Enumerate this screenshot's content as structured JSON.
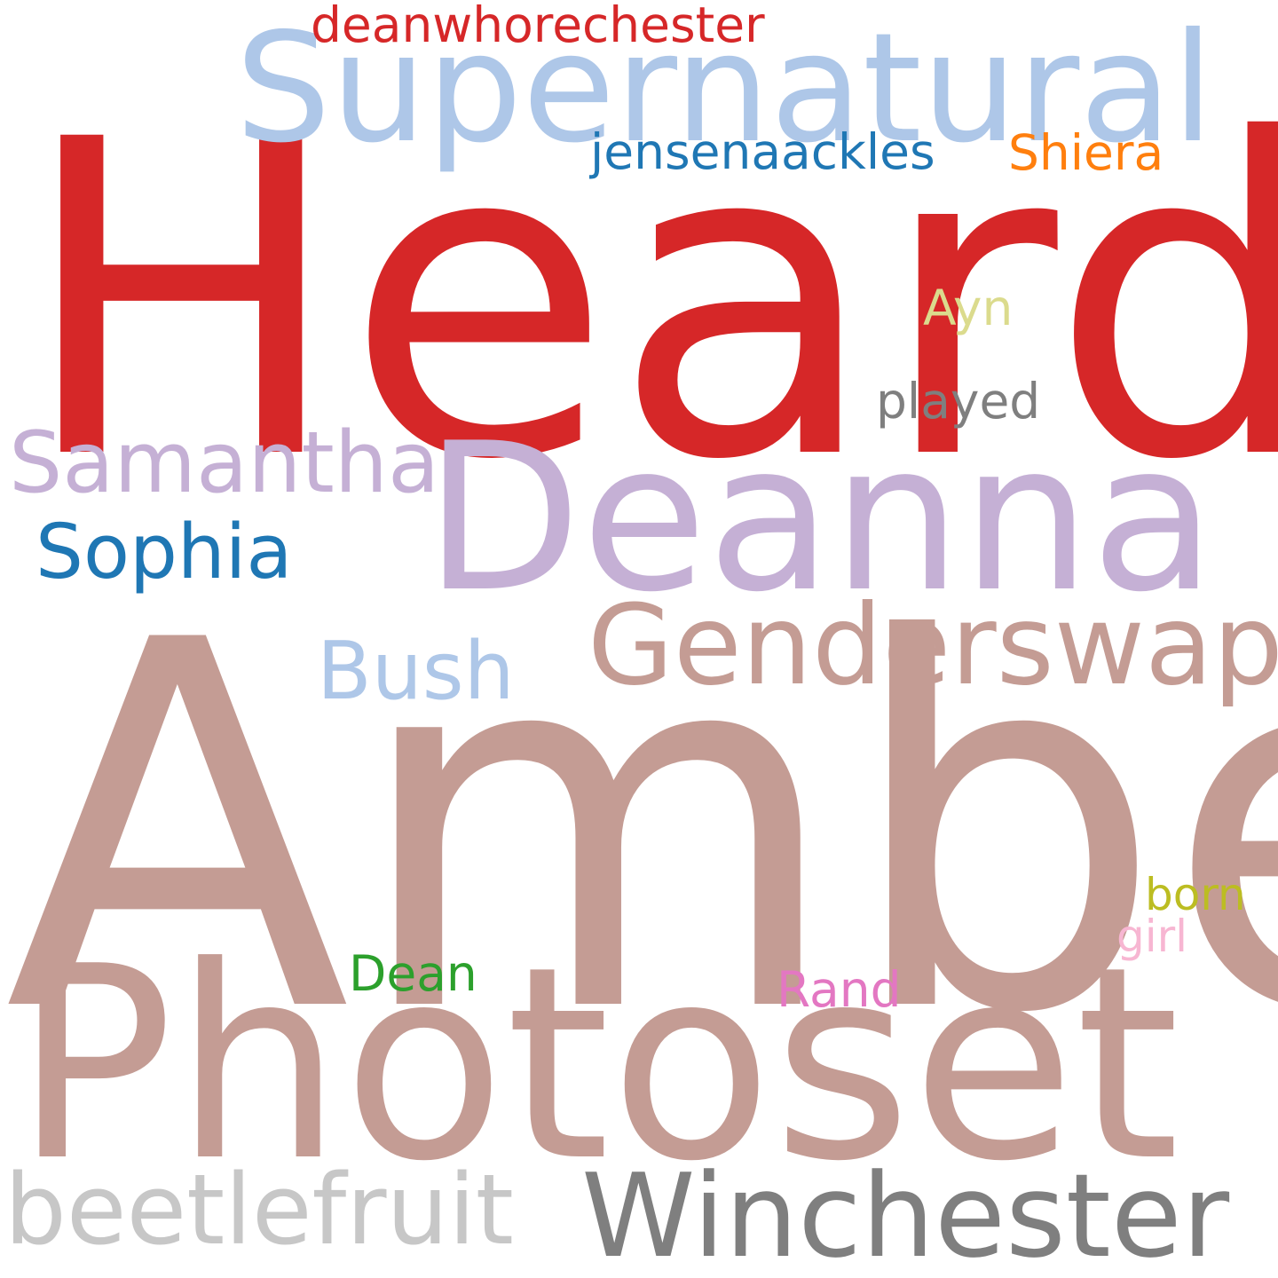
{
  "words": {
    "heard": {
      "text": "Heard",
      "color": "#d62728"
    },
    "amber": {
      "text": "Amber",
      "color": "#c49c94"
    },
    "photoset": {
      "text": "Photoset",
      "color": "#c49c94"
    },
    "deanna": {
      "text": "Deanna",
      "color": "#c5b0d5"
    },
    "supernatural": {
      "text": "Supernatural",
      "color": "#aec7e8"
    },
    "genderswap": {
      "text": "Genderswap",
      "color": "#c49c94"
    },
    "winchester": {
      "text": "Winchester",
      "color": "#7f7f7f"
    },
    "beetlefruit": {
      "text": "beetlefruit",
      "color": "#c7c7c7"
    },
    "samantha": {
      "text": "Samantha",
      "color": "#c5b0d5"
    },
    "sophia": {
      "text": "Sophia",
      "color": "#1f77b4"
    },
    "bush": {
      "text": "Bush",
      "color": "#aec7e8"
    },
    "deanwhorechester": {
      "text": "deanwhorechester",
      "color": "#d62728"
    },
    "jensenaackles": {
      "text": "jensenaackles",
      "color": "#1f77b4"
    },
    "shiera": {
      "text": "Shiera",
      "color": "#ff7f0e"
    },
    "ayn": {
      "text": "Ayn",
      "color": "#dbdb8d"
    },
    "played": {
      "text": "played",
      "color": "#7f7f7f"
    },
    "born": {
      "text": "born",
      "color": "#bcbd22"
    },
    "girl": {
      "text": "girl",
      "color": "#f7b6d2"
    },
    "dean": {
      "text": "Dean",
      "color": "#2ca02c"
    },
    "rand": {
      "text": "Rand",
      "color": "#e377c2"
    }
  }
}
